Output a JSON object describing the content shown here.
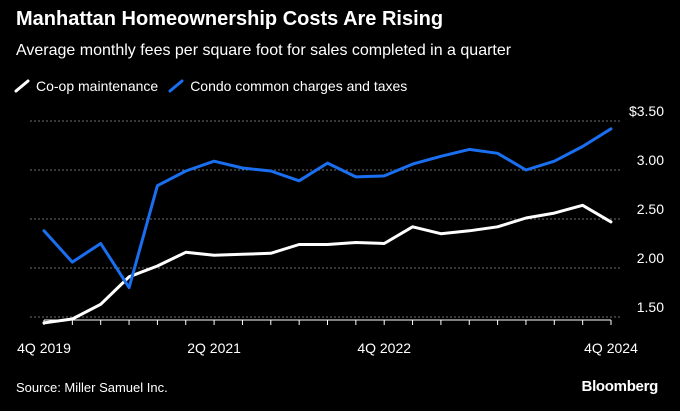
{
  "chart_data": {
    "type": "line",
    "title": "Manhattan Homeownership Costs Are Rising",
    "subtitle": "Average monthly fees per square foot for sales completed in a quarter",
    "xlabel": "",
    "ylabel": "",
    "x": [
      "4Q 2019",
      "1Q 2020",
      "2Q 2020",
      "3Q 2020",
      "4Q 2020",
      "1Q 2021",
      "2Q 2021",
      "3Q 2021",
      "4Q 2021",
      "1Q 2022",
      "2Q 2022",
      "3Q 2022",
      "4Q 2022",
      "1Q 2023",
      "2Q 2023",
      "3Q 2023",
      "4Q 2023",
      "1Q 2024",
      "2Q 2024",
      "3Q 2024",
      "4Q 2024"
    ],
    "x_tick_labels": [
      {
        "index": 0,
        "label": "4Q 2019"
      },
      {
        "index": 6,
        "label": "2Q 2021"
      },
      {
        "index": 12,
        "label": "4Q 2022"
      },
      {
        "index": 20,
        "label": "4Q 2024"
      }
    ],
    "ylim": [
      1.4,
      3.6
    ],
    "y_ticks": [
      {
        "value": 3.5,
        "label": "$3.50"
      },
      {
        "value": 3.0,
        "label": "3.00"
      },
      {
        "value": 2.5,
        "label": "2.50"
      },
      {
        "value": 2.0,
        "label": "2.00"
      },
      {
        "value": 1.5,
        "label": "1.50"
      }
    ],
    "grid": true,
    "series": [
      {
        "name": "Co-op maintenance",
        "color": "#ffffff",
        "values": [
          1.44,
          1.48,
          1.63,
          1.91,
          2.02,
          2.16,
          2.13,
          2.14,
          2.15,
          2.24,
          2.24,
          2.26,
          2.25,
          2.42,
          2.35,
          2.38,
          2.42,
          2.51,
          2.56,
          2.64,
          2.47
        ]
      },
      {
        "name": "Condo common charges and taxes",
        "color": "#1a6ff0",
        "values": [
          2.38,
          2.06,
          2.25,
          1.8,
          2.84,
          2.99,
          3.09,
          3.02,
          2.99,
          2.89,
          3.07,
          2.93,
          2.94,
          3.06,
          3.14,
          3.21,
          3.17,
          3.0,
          3.09,
          3.24,
          3.42
        ]
      }
    ]
  },
  "legend": {
    "items": [
      "Co-op maintenance",
      "Condo common charges and taxes"
    ]
  },
  "footer": {
    "source": "Source: Miller Samuel Inc.",
    "brand": "Bloomberg"
  },
  "colors": {
    "background": "#000000",
    "grid": "#6e6e6e",
    "text": "#ffffff"
  }
}
